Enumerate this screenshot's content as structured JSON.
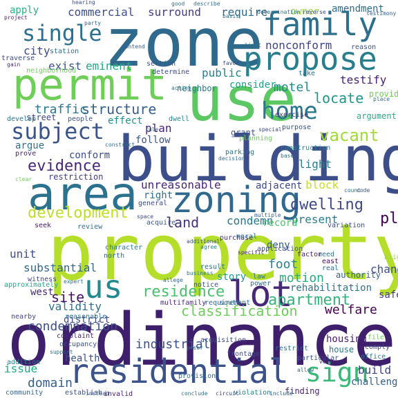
{
  "words": [
    {
      "text": "ordinance",
      "color": "#3e1f6c"
    },
    {
      "text": "property",
      "color": "#b5de2b"
    },
    {
      "text": "building",
      "color": "#3c4f8a"
    },
    {
      "text": "zone",
      "color": "#2f6a8d"
    },
    {
      "text": "use",
      "color": "#5cc863"
    },
    {
      "text": "permit",
      "color": "#6ece58"
    },
    {
      "text": "area",
      "color": "#2c728e"
    },
    {
      "text": "residential",
      "color": "#3b528b"
    },
    {
      "text": "zoning",
      "color": "#31688e"
    },
    {
      "text": "family",
      "color": "#2d708e"
    },
    {
      "text": "propose",
      "color": "#277f8e"
    },
    {
      "text": "lot",
      "color": "#482878"
    },
    {
      "text": "us",
      "color": "#23898e"
    },
    {
      "text": "home",
      "color": "#2a788e"
    },
    {
      "text": "subject",
      "color": "#3a548c"
    },
    {
      "text": "single",
      "color": "#2e6e8e"
    },
    {
      "text": "sign",
      "color": "#38b977"
    },
    {
      "text": "evidence",
      "color": "#482677"
    },
    {
      "text": "classification",
      "color": "#6ccd5a"
    },
    {
      "text": "residence",
      "color": "#4ac16d"
    },
    {
      "text": "apartment",
      "color": "#31b57b"
    },
    {
      "text": "development",
      "color": "#bddf26"
    },
    {
      "text": "dwelling",
      "color": "#3f4889"
    },
    {
      "text": "land",
      "color": "#46307e"
    },
    {
      "text": "condemnation",
      "color": "#3d4e8a"
    },
    {
      "text": "vacant",
      "color": "#a2da37"
    },
    {
      "text": "plaintiffs",
      "color": "#440154"
    },
    {
      "text": "unreasonable",
      "color": "#482576"
    },
    {
      "text": "structure",
      "color": "#355f8d"
    },
    {
      "text": "traffic",
      "color": "#2a788e"
    },
    {
      "text": "locate",
      "color": "#1f968b"
    },
    {
      "text": "motel",
      "color": "#228b8d"
    },
    {
      "text": "commercial",
      "color": "#3d4d8a"
    },
    {
      "text": "surround",
      "color": "#433e85"
    },
    {
      "text": "require",
      "color": "#30698e"
    },
    {
      "text": "nonconform",
      "color": "#404688"
    },
    {
      "text": "city",
      "color": "#3e4989"
    },
    {
      "text": "exist",
      "color": "#3a548c"
    },
    {
      "text": "eminent",
      "color": "#22a884"
    },
    {
      "text": "public",
      "color": "#27808e"
    },
    {
      "text": "consider",
      "color": "#1f9f88"
    },
    {
      "text": "testify",
      "color": "#482173"
    },
    {
      "text": "apply",
      "color": "#29af7f"
    },
    {
      "text": "owner",
      "color": "#9dd93b"
    },
    {
      "text": "amendment",
      "color": "#2e6d8e"
    },
    {
      "text": "conform",
      "color": "#3e4a89"
    },
    {
      "text": "restriction",
      "color": "#453882"
    },
    {
      "text": "argue",
      "color": "#2c728e"
    },
    {
      "text": "plan",
      "color": "#482475"
    },
    {
      "text": "follow",
      "color": "#3b528b"
    },
    {
      "text": "effect",
      "color": "#21908d"
    },
    {
      "text": "right",
      "color": "#2d708e"
    },
    {
      "text": "block",
      "color": "#c8e020"
    },
    {
      "text": "adjacent",
      "color": "#3f4788"
    },
    {
      "text": "light",
      "color": "#277f8e"
    },
    {
      "text": "condemn",
      "color": "#2a768e"
    },
    {
      "text": "present",
      "color": "#287c8e"
    },
    {
      "text": "record",
      "color": "#4ec36b"
    },
    {
      "text": "deny",
      "color": "#355e8d"
    },
    {
      "text": "foot",
      "color": "#24878e"
    },
    {
      "text": "motion",
      "color": "#26ad81"
    },
    {
      "text": "story",
      "color": "#1f998a"
    },
    {
      "text": "industrial",
      "color": "#3b528b"
    },
    {
      "text": "rehabilitation",
      "color": "#2c738e"
    },
    {
      "text": "welfare",
      "color": "#440154"
    },
    {
      "text": "safety",
      "color": "#443983"
    },
    {
      "text": "change",
      "color": "#3d4e8a"
    },
    {
      "text": "validity",
      "color": "#2d718e"
    },
    {
      "text": "unit",
      "color": "#3e4c8a"
    },
    {
      "text": "substantial",
      "color": "#31678e"
    },
    {
      "text": "site",
      "color": "#471164"
    },
    {
      "text": "west",
      "color": "#482979"
    },
    {
      "text": "issue",
      "color": "#23a983"
    },
    {
      "text": "domain",
      "color": "#355f8d"
    },
    {
      "text": "health",
      "color": "#3b518b"
    },
    {
      "text": "housing",
      "color": "#481c6e"
    },
    {
      "text": "house",
      "color": "#2a778e"
    },
    {
      "text": "build",
      "color": "#3f4788"
    },
    {
      "text": "challenge",
      "color": "#34618d"
    },
    {
      "text": "finding",
      "color": "#482576"
    },
    {
      "text": "neighbor",
      "color": "#355f8d"
    },
    {
      "text": "district",
      "color": "#2a788e"
    },
    {
      "text": "traverse",
      "color": "#3e4989"
    },
    {
      "text": "station",
      "color": "#3f4889"
    },
    {
      "text": "neighborhood",
      "color": "#2e6f8e"
    },
    {
      "text": "street",
      "color": "#6ece58"
    },
    {
      "text": "develop",
      "color": "#3f4788"
    },
    {
      "text": "people",
      "color": "#2b748e"
    },
    {
      "text": "argument",
      "color": "#3b528b"
    },
    {
      "text": "prove",
      "color": "#27ad81"
    },
    {
      "text": "section",
      "color": "#481f70"
    },
    {
      "text": "determine",
      "color": "#3b518b"
    },
    {
      "text": "dwell",
      "color": "#3e4989"
    },
    {
      "text": "rule",
      "color": "#24868e"
    },
    {
      "text": "grant",
      "color": "#31688e"
    },
    {
      "text": "planning",
      "color": "#3a548c"
    },
    {
      "text": "purpose",
      "color": "#6ece58"
    },
    {
      "text": "construction",
      "color": "#3b518b"
    },
    {
      "text": "exercise",
      "color": "#26828e"
    },
    {
      "text": "parking",
      "color": "#46337f"
    },
    {
      "text": "general",
      "color": "#2c738e"
    },
    {
      "text": "acquire",
      "color": "#3f4788"
    },
    {
      "text": "seek",
      "color": "#39558c"
    },
    {
      "text": "review",
      "color": "#481668"
    },
    {
      "text": "variation",
      "color": "#2d718e"
    },
    {
      "text": "character",
      "color": "#3e4989"
    },
    {
      "text": "north",
      "color": "#2b758e"
    },
    {
      "text": "purchase",
      "color": "#31688e"
    },
    {
      "text": "moral",
      "color": "#472c7a"
    },
    {
      "text": "application",
      "color": "#2e6d8e"
    },
    {
      "text": "factor",
      "color": "#3e4c8a"
    },
    {
      "text": "authority",
      "color": "#481a6c"
    },
    {
      "text": "east",
      "color": "#34618d"
    },
    {
      "text": "real",
      "color": "#46085c"
    },
    {
      "text": "need",
      "color": "#2d708e"
    },
    {
      "text": "blight",
      "color": "#2a768e"
    },
    {
      "text": "frontage",
      "color": "#a0da39"
    },
    {
      "text": "provision",
      "color": "#3e4a89"
    },
    {
      "text": "complaint",
      "color": "#2f6b8e"
    },
    {
      "text": "nearby",
      "color": "#482677"
    },
    {
      "text": "reasonable",
      "color": "#414487"
    },
    {
      "text": "witness",
      "color": "#2c738e"
    },
    {
      "text": "approximately",
      "color": "#414487"
    },
    {
      "text": "addition",
      "color": "#21a585"
    },
    {
      "text": "occupancy",
      "color": "#27808e"
    },
    {
      "text": "support",
      "color": "#3b528b"
    },
    {
      "text": "community",
      "color": "#2e6d8e"
    },
    {
      "text": "establish",
      "color": "#31688e"
    },
    {
      "text": "invalid",
      "color": "#3b518b"
    },
    {
      "text": "violation",
      "color": "#481b6d"
    },
    {
      "text": "circuit",
      "color": "#26828e"
    },
    {
      "text": "include",
      "color": "#3f4788"
    },
    {
      "text": "office",
      "color": "#355f8d"
    },
    {
      "text": "comply",
      "color": "#2a788e"
    },
    {
      "text": "file",
      "color": "#3e4989"
    },
    {
      "text": "restrict",
      "color": "#6ece58"
    },
    {
      "text": "particular",
      "color": "#2c728e"
    },
    {
      "text": "acquisition",
      "color": "#3b528b"
    },
    {
      "text": "multifamily",
      "color": "#3f4788"
    },
    {
      "text": "requirement",
      "color": "#482677"
    },
    {
      "text": "south",
      "color": "#31688e"
    },
    {
      "text": "result",
      "color": "#2e6d8e"
    },
    {
      "text": "law",
      "color": "#2d708e"
    },
    {
      "text": "power",
      "color": "#2c738e"
    },
    {
      "text": "notice",
      "color": "#2f6b8e"
    },
    {
      "text": "specific",
      "color": "#3a548c"
    },
    {
      "text": "agree",
      "color": "#482878"
    },
    {
      "text": "good",
      "color": "#26828e"
    },
    {
      "text": "describe",
      "color": "#2e6d8e"
    },
    {
      "text": "hearing",
      "color": "#2d708e"
    },
    {
      "text": "determination",
      "color": "#3b518b"
    },
    {
      "text": "reverse",
      "color": "#2c738e"
    },
    {
      "text": "testimony",
      "color": "#3e4989"
    },
    {
      "text": "project",
      "color": "#355f8d"
    },
    {
      "text": "party",
      "color": "#481f70"
    },
    {
      "text": "limit",
      "color": "#31688e"
    },
    {
      "text": "reason",
      "color": "#2a768e"
    },
    {
      "text": "take",
      "color": "#3b528b"
    },
    {
      "text": "provide",
      "color": "#2c728e"
    },
    {
      "text": "place",
      "color": "#6ece58"
    },
    {
      "text": "special",
      "color": "#2e6d8e"
    },
    {
      "text": "count",
      "color": "#3f4788"
    },
    {
      "text": "code",
      "color": "#2c738e"
    },
    {
      "text": "decision",
      "color": "#3b528b"
    },
    {
      "text": "base",
      "color": "#31688e"
    },
    {
      "text": "action",
      "color": "#2f6b8e"
    },
    {
      "text": "favor",
      "color": "#2a788e"
    },
    {
      "text": "contend",
      "color": "#3e4989"
    },
    {
      "text": "basis",
      "color": "#355f8d"
    },
    {
      "text": "gain",
      "color": "#2d708e"
    },
    {
      "text": "construct",
      "color": "#482677"
    },
    {
      "text": "additional",
      "color": "#2e6d8e"
    },
    {
      "text": "expert",
      "color": "#3b518b"
    },
    {
      "text": "allege",
      "color": "#2c728e"
    },
    {
      "text": "business",
      "color": "#31688e"
    },
    {
      "text": "clear",
      "color": "#2a768e"
    },
    {
      "text": "space",
      "color": "#6ece58"
    },
    {
      "text": "multiple",
      "color": "#3f4788"
    },
    {
      "text": "prior",
      "color": "#355f8d"
    },
    {
      "text": "instead",
      "color": "#2e6d8e"
    },
    {
      "text": "conclude",
      "color": "#3b528b"
    },
    {
      "text": "allow",
      "color": "#2c738e"
    },
    {
      "text": "void",
      "color": "#31688e"
    },
    {
      "text": "however",
      "color": "#482677"
    }
  ]
}
